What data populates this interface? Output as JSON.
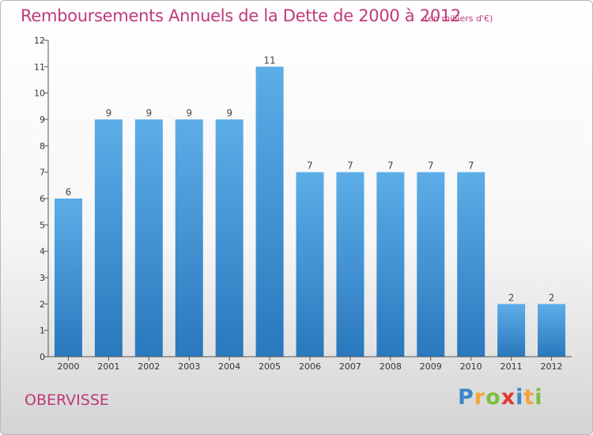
{
  "header": {
    "title": "Remboursements Annuels de la Dette de 2000 à 2012",
    "subtitle": "(en milliers d'€)"
  },
  "footer": {
    "city": "OBERVISSE",
    "logo_letters": [
      {
        "ch": "P",
        "color": "#3a86c8"
      },
      {
        "ch": "r",
        "color": "#f2a43a"
      },
      {
        "ch": "o",
        "color": "#7bbf3f"
      },
      {
        "ch": "x",
        "color": "#e2382e"
      },
      {
        "ch": "i",
        "color": "#3a86c8"
      },
      {
        "ch": "t",
        "color": "#f2a43a"
      },
      {
        "ch": "i",
        "color": "#7bbf3f"
      }
    ]
  },
  "chart_data": {
    "type": "bar",
    "title": "Remboursements Annuels de la Dette de 2000 à 2012",
    "subtitle": "(en milliers d'€)",
    "categories": [
      "2000",
      "2001",
      "2002",
      "2003",
      "2004",
      "2005",
      "2006",
      "2007",
      "2008",
      "2009",
      "2010",
      "2011",
      "2012"
    ],
    "values": [
      6,
      9,
      9,
      9,
      9,
      11,
      7,
      7,
      7,
      7,
      7,
      2,
      2
    ],
    "yticks": [
      0,
      1,
      2,
      3,
      4,
      5,
      6,
      7,
      8,
      9,
      10,
      11,
      12
    ],
    "ylim": [
      0,
      12
    ],
    "bar_color_top": "#5dade8",
    "bar_color_bottom": "#2a78bd",
    "grid": false
  }
}
